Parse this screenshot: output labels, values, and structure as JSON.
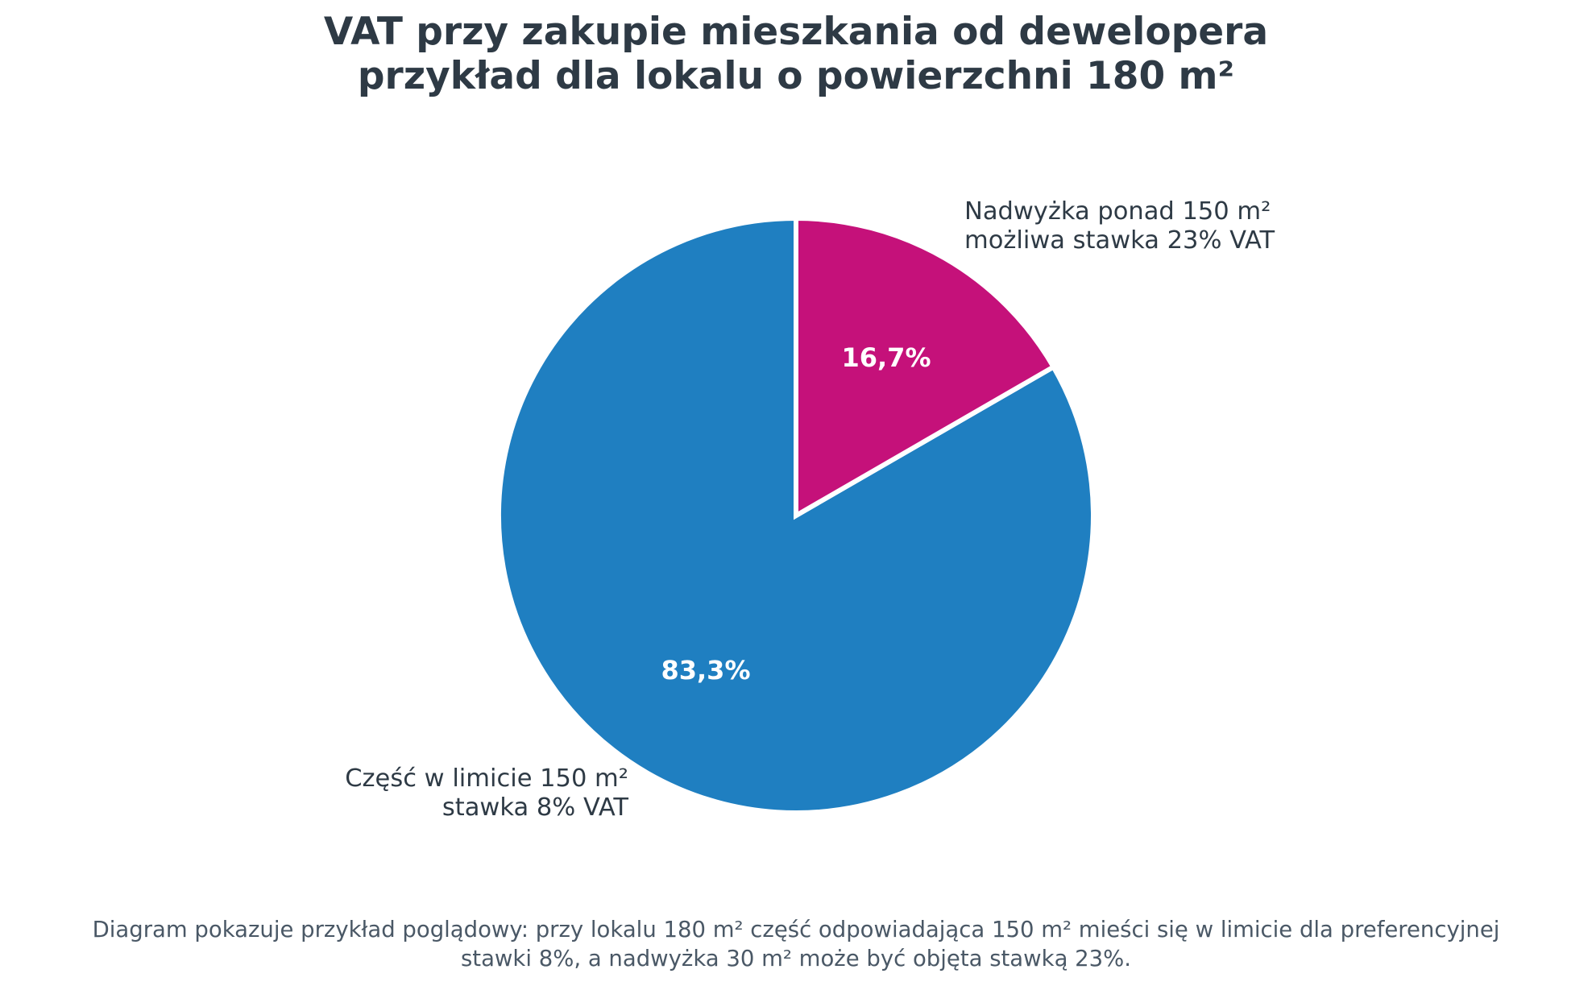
{
  "title": {
    "line1": "VAT przy zakupie mieszkania od dewelopera",
    "line2": "przykład dla lokalu o powierzchni 180 m²"
  },
  "slices": [
    {
      "name": "Nadwyżka ponad 150 m²",
      "label_line1": "Nadwyżka ponad 150 m²",
      "label_line2": "możliwa stawka 23% VAT",
      "percent_label": "16,7%",
      "value": 30,
      "color": "#C5117A"
    },
    {
      "name": "Część w limicie 150 m²",
      "label_line1": "Część w limicie 150 m²",
      "label_line2": "stawka 8% VAT",
      "percent_label": "83,3%",
      "value": 150,
      "color": "#1F7FC1"
    }
  ],
  "footer": {
    "line1": "Diagram pokazuje przykład poglądowy: przy lokalu 180 m² część odpowiadająca 150 m² mieści się w limicie dla preferencyjnej",
    "line2": "stawki 8%, a nadwyżka 30 m² może być objęta stawką 23%."
  },
  "chart_data": {
    "type": "pie",
    "title": "VAT przy zakupie mieszkania od dewelopera\nprzykład dla lokalu o powierzchni 180 m²",
    "categories": [
      "Nadwyżka ponad 150 m²\nmożliwa stawka 23% VAT",
      "Część w limicie 150 m²\nstawka 8% VAT"
    ],
    "values": [
      30,
      150
    ],
    "percentages": [
      16.7,
      83.3
    ],
    "percent_labels": [
      "16,7%",
      "83,3%"
    ],
    "colors": [
      "#C5117A",
      "#1F7FC1"
    ],
    "start_angle": 90,
    "direction": "clockwise",
    "legend": "none (labels placed outside slices)",
    "caption": "Diagram pokazuje przykład poglądowy: przy lokalu 180 m² część odpowiadająca 150 m² mieści się w limicie dla preferencyjnej stawki 8%, a nadwyżka 30 m² może być objęta stawką 23%."
  }
}
